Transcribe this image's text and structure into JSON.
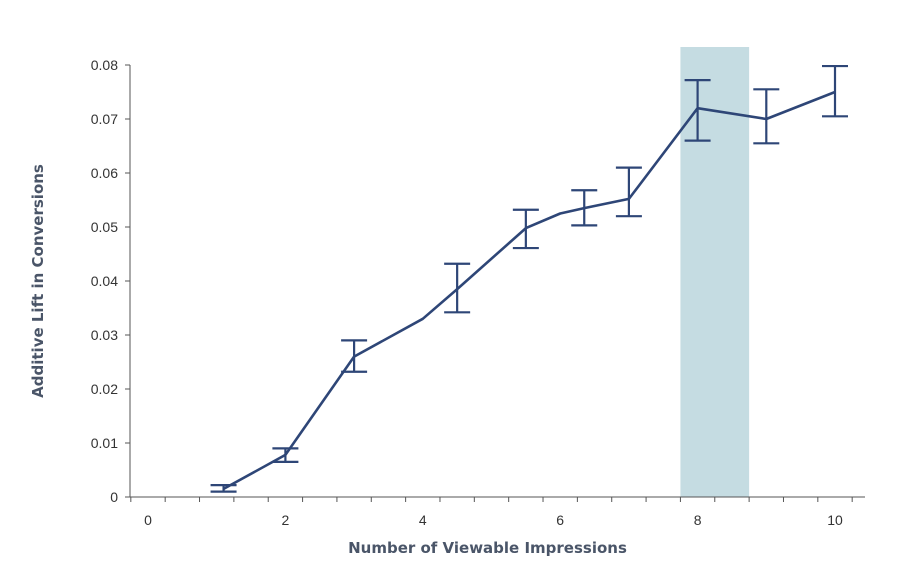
{
  "chart_data": {
    "type": "line",
    "title": "",
    "xlabel": "Number of Viewable Impressions",
    "ylabel": "Additive Lift in Conversions",
    "xlim": [
      0,
      10
    ],
    "ylim": [
      0,
      0.08
    ],
    "x_ticks": [
      0,
      2,
      4,
      6,
      8,
      10
    ],
    "x_tick_labels": [
      "0",
      "2",
      "4",
      "6",
      "8",
      "10"
    ],
    "y_ticks": [
      0,
      0.01,
      0.02,
      0.03,
      0.04,
      0.05,
      0.06,
      0.07,
      0.08
    ],
    "y_tick_labels": [
      "0",
      "0.01",
      "0.02",
      "0.03",
      "0.04",
      "0.05",
      "0.06",
      "0.07",
      "0.08"
    ],
    "grid": false,
    "legend": "none",
    "highlight_band": {
      "x_from": 7.75,
      "x_to": 8.75,
      "color": "#c5dce2"
    },
    "series": [
      {
        "color": "#2e4677",
        "points": [
          {
            "x": 1.1,
            "y": 0.0015
          },
          {
            "x": 2.0,
            "y": 0.0078
          },
          {
            "x": 3.0,
            "y": 0.026
          },
          {
            "x": 4.0,
            "y": 0.033
          },
          {
            "x": 4.5,
            "y": 0.0385
          },
          {
            "x": 5.5,
            "y": 0.0498
          },
          {
            "x": 6.0,
            "y": 0.0525
          },
          {
            "x": 6.35,
            "y": 0.0535
          },
          {
            "x": 7.0,
            "y": 0.0552
          },
          {
            "x": 8.0,
            "y": 0.072
          },
          {
            "x": 9.0,
            "y": 0.07
          },
          {
            "x": 10.0,
            "y": 0.075
          }
        ],
        "error_bars": [
          {
            "x": 1.1,
            "low": 0.001,
            "high": 0.0022
          },
          {
            "x": 2.0,
            "low": 0.0065,
            "high": 0.009
          },
          {
            "x": 3.0,
            "low": 0.0232,
            "high": 0.029
          },
          {
            "x": 4.5,
            "low": 0.0342,
            "high": 0.0432
          },
          {
            "x": 5.5,
            "low": 0.0461,
            "high": 0.0532
          },
          {
            "x": 6.35,
            "low": 0.0503,
            "high": 0.0568
          },
          {
            "x": 7.0,
            "low": 0.052,
            "high": 0.061
          },
          {
            "x": 8.0,
            "low": 0.066,
            "high": 0.0772
          },
          {
            "x": 9.0,
            "low": 0.0655,
            "high": 0.0755
          },
          {
            "x": 10.0,
            "low": 0.0705,
            "high": 0.0798
          }
        ]
      }
    ]
  }
}
